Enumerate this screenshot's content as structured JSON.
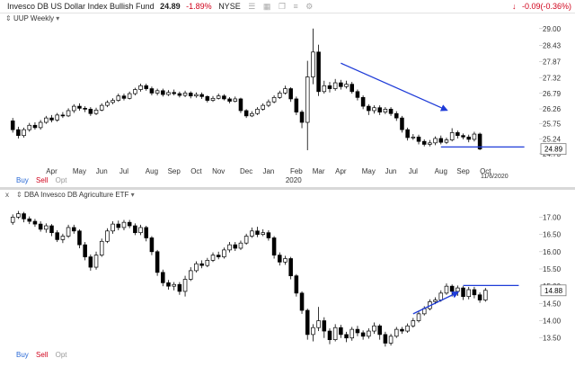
{
  "header": {
    "fund_name": "Invesco DB US Dollar Index Bullish Fund",
    "price": "24.89",
    "change_pct": "-1.89%",
    "exchange": "NYSE",
    "right_change": "-0.09(-0.36%)"
  },
  "top_panel": {
    "label": "UUP Weekly",
    "year_label": "2020",
    "date_label": "11/6/2020"
  },
  "bottom_panel": {
    "label": "DBA Invesco DB Agriculture ETF",
    "close_label": "x"
  },
  "trade_buttons": {
    "buy": "Buy",
    "sell": "Sell",
    "opt": "Opt"
  },
  "colors": {
    "up": "#ffffff",
    "down": "#000000",
    "trendline": "#1f3cd8",
    "accent_red": "#d0021b"
  },
  "chart_data": [
    {
      "type": "candlestick",
      "title": "UUP Weekly",
      "x_tick_labels": [
        "Apr",
        "May",
        "Jun",
        "Jul",
        "Aug",
        "Sep",
        "Oct",
        "Nov",
        "Dec",
        "Jan",
        "Feb",
        "Mar",
        "Apr",
        "May",
        "Jun",
        "Jul",
        "Aug",
        "Sep",
        "Oct"
      ],
      "x_tick_weeks": [
        7,
        12,
        16,
        20,
        25,
        29,
        33,
        37,
        42,
        46,
        51,
        55,
        59,
        64,
        68,
        72,
        77,
        81,
        85
      ],
      "y_tick_labels": [
        "29.00",
        "28.43",
        "27.87",
        "27.32",
        "26.79",
        "26.26",
        "25.75",
        "25.24",
        "24.73"
      ],
      "y_tick_values": [
        29.0,
        28.43,
        27.87,
        27.32,
        26.79,
        26.26,
        25.75,
        25.24,
        24.73
      ],
      "ylim": [
        24.45,
        29.3
      ],
      "xlim": [
        -1,
        94
      ],
      "last_price": 24.89,
      "trendlines": [
        {
          "style": "arrow",
          "from": [
            59,
            27.82
          ],
          "to": [
            78,
            26.22
          ]
        },
        {
          "style": "line",
          "from": [
            77,
            24.96
          ],
          "to": [
            92,
            24.96
          ]
        }
      ],
      "candles": [
        [
          25.85,
          25.55,
          25.95,
          25.45
        ],
        [
          25.55,
          25.35,
          25.65,
          25.25
        ],
        [
          25.35,
          25.55,
          25.62,
          25.28
        ],
        [
          25.55,
          25.7,
          25.78,
          25.48
        ],
        [
          25.7,
          25.62,
          25.8,
          25.55
        ],
        [
          25.62,
          25.8,
          25.88,
          25.55
        ],
        [
          25.8,
          25.95,
          26.02,
          25.75
        ],
        [
          25.95,
          25.88,
          26.05,
          25.8
        ],
        [
          25.88,
          26.05,
          26.12,
          25.82
        ],
        [
          26.05,
          26.02,
          26.15,
          25.95
        ],
        [
          26.02,
          26.2,
          26.28,
          25.98
        ],
        [
          26.2,
          26.35,
          26.42,
          26.12
        ],
        [
          26.35,
          26.28,
          26.45,
          26.2
        ],
        [
          26.28,
          26.25,
          26.35,
          26.15
        ],
        [
          26.25,
          26.1,
          26.32,
          26.02
        ],
        [
          26.1,
          26.22,
          26.3,
          26.05
        ],
        [
          26.22,
          26.38,
          26.45,
          26.18
        ],
        [
          26.38,
          26.48,
          26.55,
          26.32
        ],
        [
          26.48,
          26.55,
          26.62,
          26.42
        ],
        [
          26.55,
          26.7,
          26.78,
          26.5
        ],
        [
          26.7,
          26.62,
          26.78,
          26.55
        ],
        [
          26.62,
          26.78,
          26.85,
          26.58
        ],
        [
          26.78,
          26.92,
          26.98,
          26.72
        ],
        [
          26.92,
          27.05,
          27.12,
          26.85
        ],
        [
          27.05,
          26.95,
          27.12,
          26.88
        ],
        [
          26.95,
          26.8,
          27.02,
          26.72
        ],
        [
          26.8,
          26.88,
          26.95,
          26.72
        ],
        [
          26.88,
          26.75,
          26.95,
          26.68
        ],
        [
          26.75,
          26.82,
          26.9,
          26.7
        ],
        [
          26.82,
          26.78,
          26.92,
          26.72
        ],
        [
          26.78,
          26.72,
          26.85,
          26.65
        ],
        [
          26.72,
          26.8,
          26.88,
          26.66
        ],
        [
          26.8,
          26.7,
          26.86,
          26.62
        ],
        [
          26.7,
          26.75,
          26.82,
          26.64
        ],
        [
          26.75,
          26.68,
          26.82,
          26.6
        ],
        [
          26.68,
          26.55,
          26.72,
          26.48
        ],
        [
          26.55,
          26.62,
          26.7,
          26.5
        ],
        [
          26.62,
          26.7,
          26.78,
          26.58
        ],
        [
          26.7,
          26.6,
          26.76,
          26.55
        ],
        [
          26.6,
          26.52,
          26.66,
          26.45
        ],
        [
          26.52,
          26.6,
          26.68,
          26.48
        ],
        [
          26.6,
          26.2,
          26.64,
          26.12
        ],
        [
          26.2,
          26.02,
          26.25,
          25.95
        ],
        [
          26.02,
          26.1,
          26.18,
          25.98
        ],
        [
          26.1,
          26.25,
          26.32,
          26.05
        ],
        [
          26.25,
          26.38,
          26.45,
          26.2
        ],
        [
          26.38,
          26.5,
          26.58,
          26.32
        ],
        [
          26.5,
          26.65,
          26.72,
          26.45
        ],
        [
          26.65,
          26.8,
          26.88,
          26.6
        ],
        [
          26.8,
          26.95,
          27.05,
          26.75
        ],
        [
          26.95,
          26.6,
          27.0,
          26.5
        ],
        [
          26.6,
          26.15,
          26.68,
          26.05
        ],
        [
          26.15,
          25.8,
          26.22,
          25.6
        ],
        [
          25.8,
          27.35,
          27.9,
          24.85
        ],
        [
          27.35,
          28.2,
          29.0,
          27.1
        ],
        [
          28.2,
          26.85,
          28.45,
          26.7
        ],
        [
          26.85,
          27.05,
          27.22,
          26.78
        ],
        [
          27.05,
          26.95,
          27.18,
          26.82
        ],
        [
          26.95,
          27.15,
          27.28,
          26.88
        ],
        [
          27.15,
          27.02,
          27.25,
          26.92
        ],
        [
          27.02,
          27.1,
          27.22,
          26.95
        ],
        [
          27.1,
          26.85,
          27.18,
          26.78
        ],
        [
          26.85,
          26.65,
          26.92,
          26.55
        ],
        [
          26.65,
          26.35,
          26.72,
          26.25
        ],
        [
          26.35,
          26.2,
          26.42,
          26.05
        ],
        [
          26.2,
          26.3,
          26.38,
          26.1
        ],
        [
          26.3,
          26.15,
          26.38,
          26.05
        ],
        [
          26.15,
          26.25,
          26.32,
          26.08
        ],
        [
          26.25,
          26.1,
          26.32,
          26.02
        ],
        [
          26.1,
          25.95,
          26.18,
          25.85
        ],
        [
          25.95,
          25.55,
          26.02,
          25.45
        ],
        [
          25.55,
          25.28,
          25.62,
          25.18
        ],
        [
          25.28,
          25.3,
          25.4,
          25.2
        ],
        [
          25.3,
          25.15,
          25.38,
          25.05
        ],
        [
          25.15,
          25.05,
          25.22,
          24.98
        ],
        [
          25.05,
          25.1,
          25.2,
          24.98
        ],
        [
          25.1,
          25.25,
          25.32,
          25.02
        ],
        [
          25.25,
          25.12,
          25.35,
          25.05
        ],
        [
          25.12,
          25.2,
          25.28,
          25.06
        ],
        [
          25.2,
          25.45,
          25.6,
          25.15
        ],
        [
          25.45,
          25.35,
          25.52,
          25.25
        ],
        [
          25.35,
          25.3,
          25.42,
          25.22
        ],
        [
          25.3,
          25.22,
          25.38,
          25.12
        ],
        [
          25.22,
          25.4,
          25.48,
          25.15
        ],
        [
          25.4,
          24.89,
          25.45,
          24.85
        ]
      ]
    },
    {
      "type": "candlestick",
      "title": "DBA Invesco DB Agriculture ETF",
      "y_tick_labels": [
        "17.00",
        "16.50",
        "16.00",
        "15.50",
        "15.00",
        "14.50",
        "14.00",
        "13.50"
      ],
      "y_tick_values": [
        17.0,
        16.5,
        16.0,
        15.5,
        15.0,
        14.5,
        14.0,
        13.5
      ],
      "ylim": [
        13.18,
        17.35
      ],
      "xlim": [
        -1,
        94
      ],
      "last_price": 14.88,
      "trendlines": [
        {
          "style": "arrow",
          "from": [
            72,
            14.2
          ],
          "to": [
            80,
            14.82
          ]
        },
        {
          "style": "line",
          "from": [
            81,
            15.02
          ],
          "to": [
            91,
            15.02
          ]
        }
      ],
      "candles": [
        [
          16.85,
          17.0,
          17.08,
          16.78
        ],
        [
          17.0,
          17.1,
          17.18,
          16.95
        ],
        [
          17.1,
          16.95,
          17.15,
          16.85
        ],
        [
          16.95,
          16.88,
          17.02,
          16.8
        ],
        [
          16.88,
          16.8,
          16.95,
          16.72
        ],
        [
          16.8,
          16.65,
          16.88,
          16.58
        ],
        [
          16.65,
          16.75,
          16.82,
          16.55
        ],
        [
          16.75,
          16.55,
          16.8,
          16.45
        ],
        [
          16.55,
          16.35,
          16.62,
          16.28
        ],
        [
          16.35,
          16.45,
          16.52,
          16.25
        ],
        [
          16.45,
          16.7,
          16.78,
          16.4
        ],
        [
          16.7,
          16.6,
          16.78,
          16.52
        ],
        [
          16.6,
          16.2,
          16.65,
          16.1
        ],
        [
          16.2,
          15.85,
          16.28,
          15.75
        ],
        [
          15.85,
          15.55,
          15.92,
          15.45
        ],
        [
          15.55,
          15.9,
          16.0,
          15.48
        ],
        [
          15.9,
          16.3,
          16.38,
          15.85
        ],
        [
          16.3,
          16.6,
          16.68,
          16.25
        ],
        [
          16.6,
          16.8,
          16.88,
          16.52
        ],
        [
          16.8,
          16.7,
          16.9,
          16.62
        ],
        [
          16.7,
          16.85,
          16.92,
          16.62
        ],
        [
          16.85,
          16.75,
          16.92,
          16.68
        ],
        [
          16.75,
          16.55,
          16.82,
          16.48
        ],
        [
          16.55,
          16.7,
          16.78,
          16.48
        ],
        [
          16.7,
          16.4,
          16.75,
          16.3
        ],
        [
          16.4,
          16.0,
          16.45,
          15.9
        ],
        [
          16.0,
          15.4,
          16.05,
          15.3
        ],
        [
          15.4,
          15.1,
          15.48,
          15.0
        ],
        [
          15.1,
          15.0,
          15.18,
          14.9
        ],
        [
          15.0,
          15.05,
          15.12,
          14.88
        ],
        [
          15.05,
          14.85,
          15.12,
          14.75
        ],
        [
          14.85,
          15.2,
          15.3,
          14.7
        ],
        [
          15.2,
          15.45,
          15.55,
          15.15
        ],
        [
          15.45,
          15.65,
          15.72,
          15.4
        ],
        [
          15.65,
          15.6,
          15.75,
          15.52
        ],
        [
          15.6,
          15.75,
          15.82,
          15.55
        ],
        [
          15.75,
          15.9,
          15.98,
          15.7
        ],
        [
          15.9,
          15.85,
          16.0,
          15.78
        ],
        [
          15.85,
          16.05,
          16.12,
          15.8
        ],
        [
          16.05,
          16.2,
          16.28,
          15.98
        ],
        [
          16.2,
          16.1,
          16.28,
          16.02
        ],
        [
          16.1,
          16.25,
          16.32,
          16.05
        ],
        [
          16.25,
          16.45,
          16.52,
          16.2
        ],
        [
          16.45,
          16.6,
          16.7,
          16.4
        ],
        [
          16.6,
          16.5,
          16.72,
          16.42
        ],
        [
          16.5,
          16.55,
          16.65,
          16.45
        ],
        [
          16.55,
          16.4,
          16.62,
          16.32
        ],
        [
          16.4,
          15.9,
          16.45,
          15.8
        ],
        [
          15.9,
          15.7,
          15.98,
          15.6
        ],
        [
          15.7,
          15.8,
          15.88,
          15.62
        ],
        [
          15.8,
          15.3,
          15.85,
          15.2
        ],
        [
          15.3,
          14.8,
          15.35,
          14.7
        ],
        [
          14.8,
          14.3,
          14.85,
          14.2
        ],
        [
          14.3,
          13.6,
          14.35,
          13.45
        ],
        [
          13.6,
          13.8,
          13.9,
          13.4
        ],
        [
          13.8,
          14.0,
          14.4,
          13.7
        ],
        [
          14.0,
          13.7,
          14.1,
          13.5
        ],
        [
          13.7,
          13.45,
          13.78,
          13.32
        ],
        [
          13.45,
          13.8,
          13.9,
          13.4
        ],
        [
          13.8,
          13.6,
          13.88,
          13.5
        ],
        [
          13.6,
          13.5,
          13.68,
          13.38
        ],
        [
          13.5,
          13.75,
          13.82,
          13.42
        ],
        [
          13.75,
          13.65,
          13.85,
          13.55
        ],
        [
          13.65,
          13.55,
          13.72,
          13.45
        ],
        [
          13.55,
          13.7,
          13.78,
          13.48
        ],
        [
          13.7,
          13.85,
          13.95,
          13.62
        ],
        [
          13.85,
          13.6,
          13.9,
          13.45
        ],
        [
          13.6,
          13.35,
          13.68,
          13.25
        ],
        [
          13.35,
          13.55,
          13.62,
          13.28
        ],
        [
          13.55,
          13.75,
          13.82,
          13.5
        ],
        [
          13.75,
          13.7,
          13.82,
          13.62
        ],
        [
          13.7,
          13.85,
          13.92,
          13.65
        ],
        [
          13.85,
          14.0,
          14.08,
          13.8
        ],
        [
          14.0,
          14.2,
          14.28,
          13.95
        ],
        [
          14.2,
          14.35,
          14.42,
          14.15
        ],
        [
          14.35,
          14.55,
          14.62,
          14.3
        ],
        [
          14.55,
          14.6,
          14.68,
          14.48
        ],
        [
          14.6,
          14.8,
          14.88,
          14.55
        ],
        [
          14.8,
          15.0,
          15.08,
          14.75
        ],
        [
          15.0,
          14.85,
          15.05,
          14.7
        ],
        [
          14.85,
          14.95,
          15.02,
          14.72
        ],
        [
          14.95,
          14.7,
          15.0,
          14.6
        ],
        [
          14.7,
          14.9,
          14.98,
          14.62
        ],
        [
          14.9,
          14.75,
          14.98,
          14.65
        ],
        [
          14.75,
          14.6,
          14.82,
          14.52
        ],
        [
          14.6,
          14.88,
          14.95,
          14.55
        ]
      ]
    }
  ]
}
